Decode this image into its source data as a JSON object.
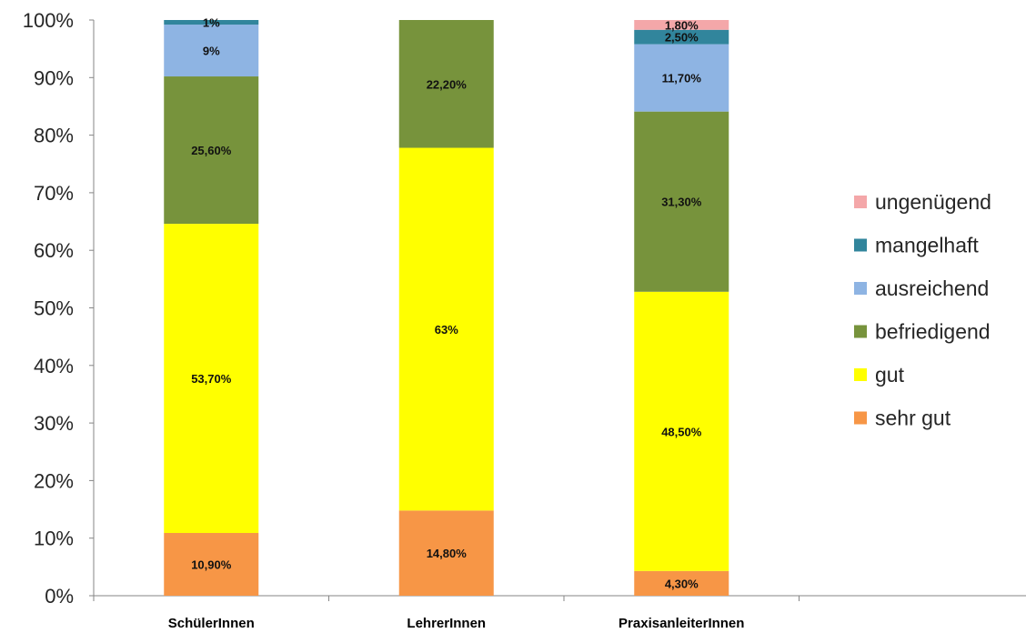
{
  "chart_data": {
    "type": "bar",
    "stacked": true,
    "categories": [
      "SchülerInnen",
      "LehrerInnen",
      "PraxisanleiterInnen"
    ],
    "y_ticks": [
      "0%",
      "10%",
      "20%",
      "30%",
      "40%",
      "50%",
      "60%",
      "70%",
      "80%",
      "90%",
      "100%"
    ],
    "ylim": [
      0,
      100
    ],
    "grid": false,
    "legend_position": "right",
    "series": [
      {
        "name": "sehr gut",
        "color": "#F79646",
        "values": [
          10.9,
          14.8,
          4.3
        ],
        "labels": [
          "10,90%",
          "14,80%",
          "4,30%"
        ]
      },
      {
        "name": "gut",
        "color": "#FFFF00",
        "values": [
          53.7,
          63.0,
          48.5
        ],
        "labels": [
          "53,70%",
          "63%",
          "48,50%"
        ]
      },
      {
        "name": "befriedigend",
        "color": "#77933C",
        "values": [
          25.6,
          22.2,
          31.3
        ],
        "labels": [
          "25,60%",
          "22,20%",
          "31,30%"
        ]
      },
      {
        "name": "ausreichend",
        "color": "#8EB4E3",
        "values": [
          9.0,
          0,
          11.7
        ],
        "labels": [
          "9%",
          "",
          "11,70%"
        ]
      },
      {
        "name": "mangelhaft",
        "color": "#31859C",
        "values": [
          0.8,
          0,
          2.5
        ],
        "labels": [
          "1%",
          "",
          "2,50%"
        ]
      },
      {
        "name": "ungenügend",
        "color": "#F4A7A9",
        "values": [
          0,
          0,
          1.8
        ],
        "labels": [
          "",
          "",
          "1,80%"
        ]
      }
    ]
  }
}
